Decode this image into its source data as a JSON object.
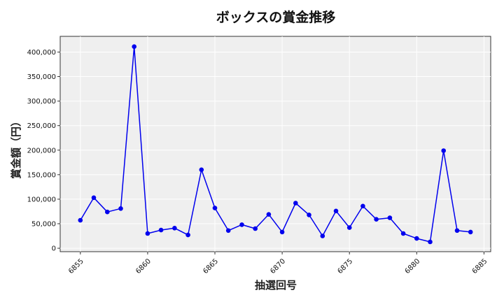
{
  "chart_data": {
    "type": "line",
    "title": "ボックスの賞金推移",
    "xlabel": "抽選回号",
    "ylabel": "賞金額（円）",
    "xlim": [
      6853.5,
      6885.5
    ],
    "ylim": [
      -7000,
      432000
    ],
    "x_ticks": [
      6855,
      6860,
      6865,
      6870,
      6875,
      6880,
      6885
    ],
    "y_ticks": [
      0,
      50000,
      100000,
      150000,
      200000,
      250000,
      300000,
      350000,
      400000
    ],
    "y_tick_labels": [
      "0",
      "50,000",
      "100,000",
      "150,000",
      "200,000",
      "250,000",
      "300,000",
      "350,000",
      "400,000"
    ],
    "grid": true,
    "series": [
      {
        "color": "#0000ee",
        "x": [
          6855,
          6856,
          6857,
          6858,
          6859,
          6860,
          6861,
          6862,
          6863,
          6864,
          6865,
          6866,
          6867,
          6868,
          6869,
          6870,
          6871,
          6872,
          6873,
          6874,
          6875,
          6876,
          6877,
          6878,
          6879,
          6880,
          6881,
          6882,
          6883,
          6884
        ],
        "values": [
          57000,
          103000,
          74000,
          81000,
          411000,
          30000,
          37000,
          41000,
          27000,
          160000,
          82000,
          36000,
          48000,
          40000,
          69000,
          33000,
          92000,
          68000,
          25000,
          76000,
          42000,
          86000,
          59000,
          62000,
          30000,
          20000,
          13000,
          199000,
          36000,
          33000
        ]
      }
    ]
  }
}
